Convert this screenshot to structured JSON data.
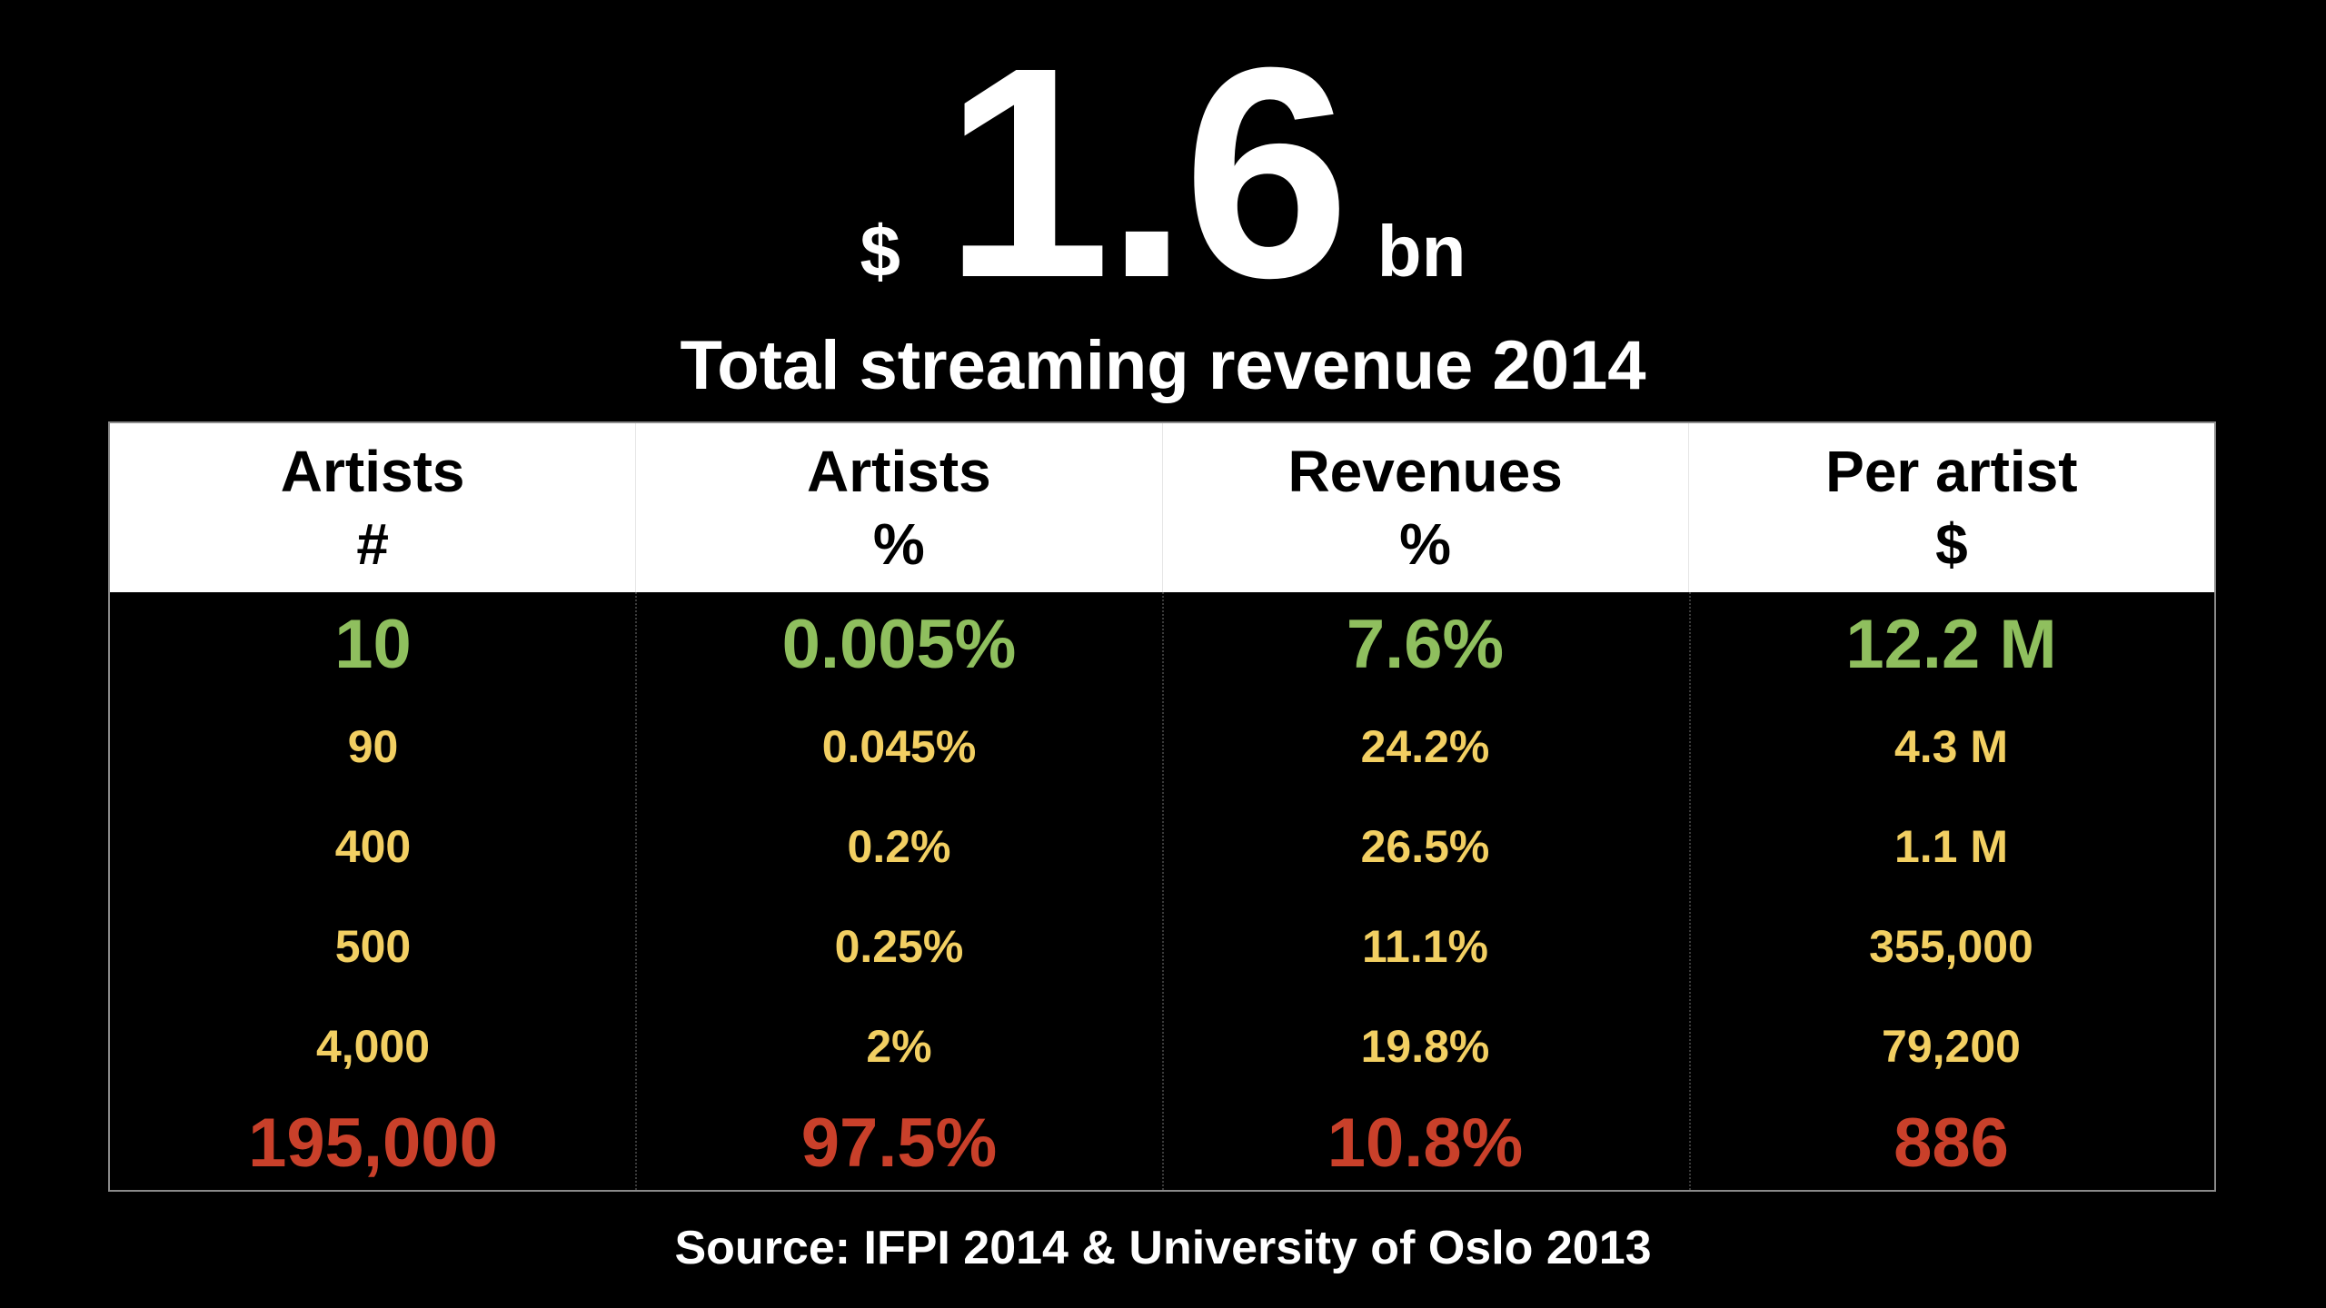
{
  "headline": {
    "currency": "$",
    "amount": "1.6",
    "unit": "bn"
  },
  "subtitle": "Total streaming revenue 2014",
  "table": {
    "columns": [
      {
        "label": "Artists",
        "unit": "#"
      },
      {
        "label": "Artists",
        "unit": "%"
      },
      {
        "label": "Revenues",
        "unit": "%"
      },
      {
        "label": "Per artist",
        "unit": "$"
      }
    ],
    "rows": [
      [
        "10",
        "0.005%",
        "7.6%",
        "12.2 M"
      ],
      [
        "90",
        "0.045%",
        "24.2%",
        "4.3 M"
      ],
      [
        "400",
        "0.2%",
        "26.5%",
        "1.1 M"
      ],
      [
        "500",
        "0.25%",
        "11.1%",
        "355,000"
      ],
      [
        "4,000",
        "2%",
        "19.8%",
        "79,200"
      ],
      [
        "195,000",
        "97.5%",
        "10.8%",
        "886"
      ]
    ]
  },
  "colors": {
    "background": "#000000",
    "top_row": "#8fbf5e",
    "middle_rows": "#f2cf62",
    "bottom_row": "#c9402a",
    "header_background": "#ffffff"
  },
  "source": "Source: IFPI 2014 & University of Oslo 2013"
}
